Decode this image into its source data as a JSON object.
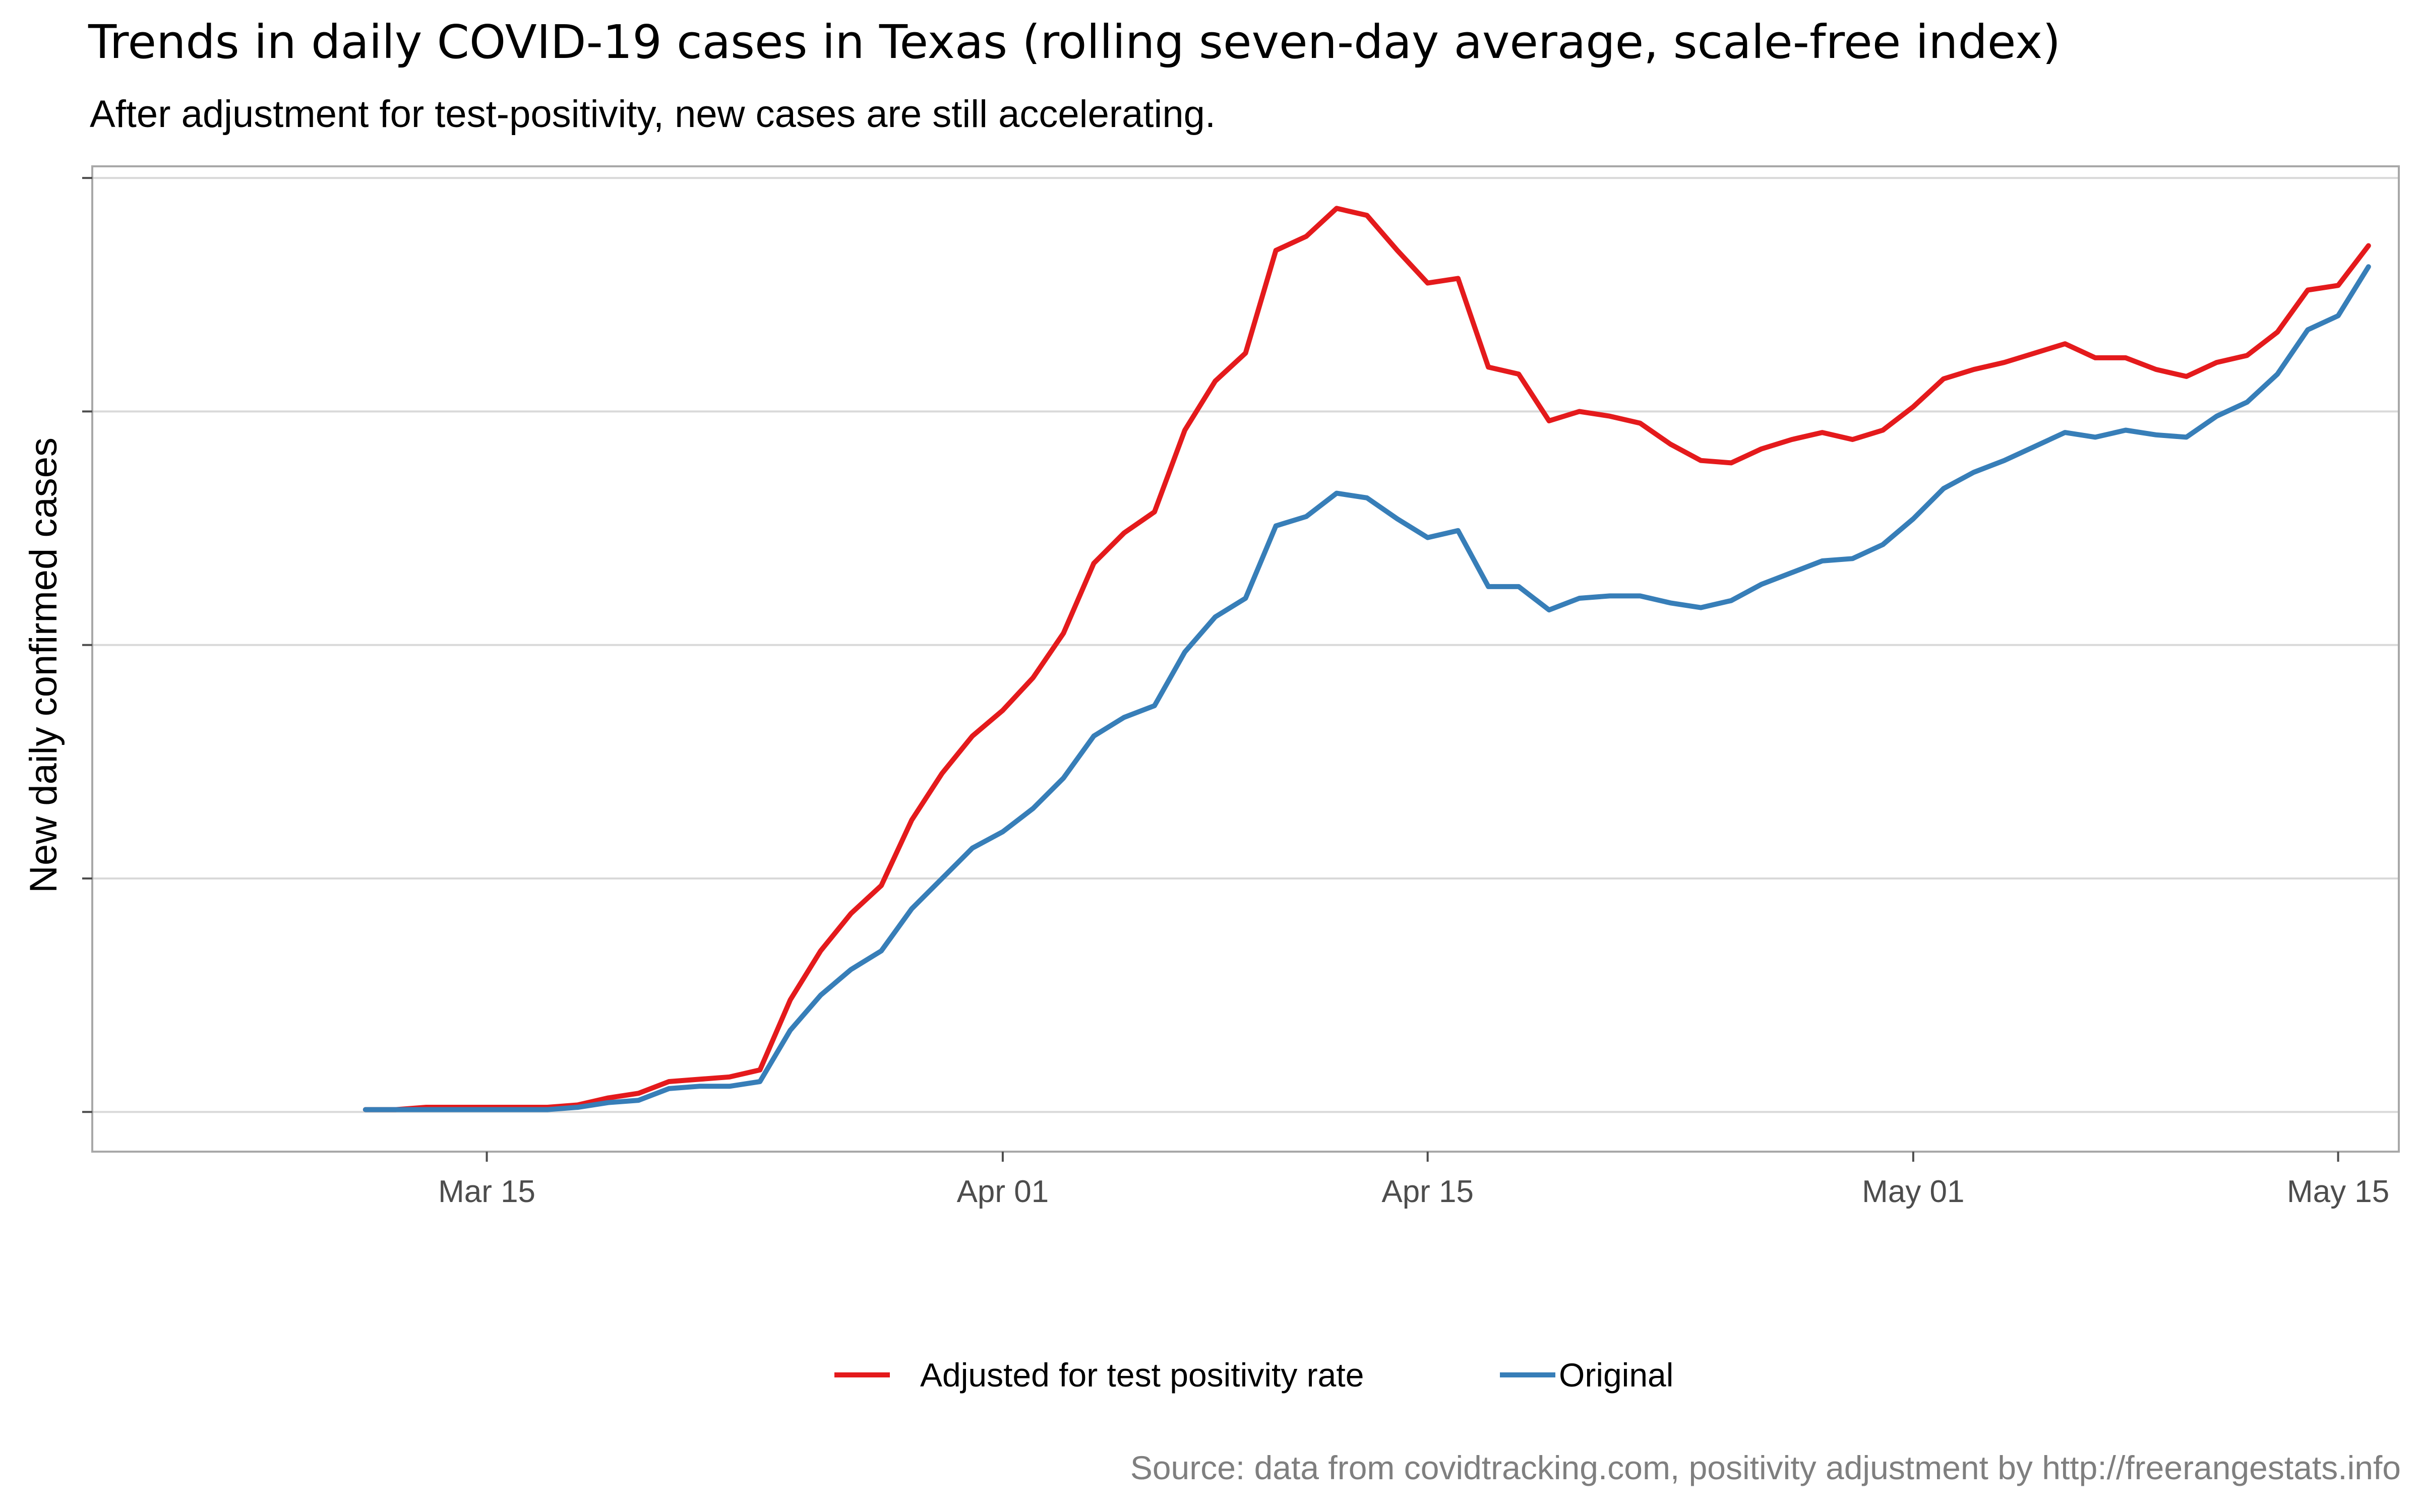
{
  "chart_data": {
    "type": "line",
    "title": "Trends in daily COVID-19 cases in Texas (rolling seven-day average, scale-free index)",
    "subtitle": "After adjustment for test-positivity, new cases are still accelerating.",
    "ylabel": "New daily confirmed cases",
    "xlabel": "",
    "caption": "Source: data from covidtracking.com, positivity adjustment by http://freerangestats.info",
    "x_axis_type": "date",
    "x_ticks": [
      {
        "date": "2020-03-15",
        "label": "Mar 15"
      },
      {
        "date": "2020-04-01",
        "label": "Apr 01"
      },
      {
        "date": "2020-04-15",
        "label": "Apr 15"
      },
      {
        "date": "2020-05-01",
        "label": "May 01"
      },
      {
        "date": "2020-05-15",
        "label": "May 15"
      }
    ],
    "xlim": [
      "2020-03-02",
      "2020-05-17"
    ],
    "y_ticks": [
      0,
      1,
      2,
      3,
      4
    ],
    "y_tick_labels_visible": false,
    "ylim": [
      -0.17,
      4.05
    ],
    "grid": true,
    "legend_position": "bottom",
    "x": [
      "2020-03-11",
      "2020-03-12",
      "2020-03-13",
      "2020-03-14",
      "2020-03-15",
      "2020-03-16",
      "2020-03-17",
      "2020-03-18",
      "2020-03-19",
      "2020-03-20",
      "2020-03-21",
      "2020-03-22",
      "2020-03-23",
      "2020-03-24",
      "2020-03-25",
      "2020-03-26",
      "2020-03-27",
      "2020-03-28",
      "2020-03-29",
      "2020-03-30",
      "2020-03-31",
      "2020-04-01",
      "2020-04-02",
      "2020-04-03",
      "2020-04-04",
      "2020-04-05",
      "2020-04-06",
      "2020-04-07",
      "2020-04-08",
      "2020-04-09",
      "2020-04-10",
      "2020-04-11",
      "2020-04-12",
      "2020-04-13",
      "2020-04-14",
      "2020-04-15",
      "2020-04-16",
      "2020-04-17",
      "2020-04-18",
      "2020-04-19",
      "2020-04-20",
      "2020-04-21",
      "2020-04-22",
      "2020-04-23",
      "2020-04-24",
      "2020-04-25",
      "2020-04-26",
      "2020-04-27",
      "2020-04-28",
      "2020-04-29",
      "2020-04-30",
      "2020-05-01",
      "2020-05-02",
      "2020-05-03",
      "2020-05-04",
      "2020-05-05",
      "2020-05-06",
      "2020-05-07",
      "2020-05-08",
      "2020-05-09",
      "2020-05-10",
      "2020-05-11",
      "2020-05-12",
      "2020-05-13",
      "2020-05-14",
      "2020-05-15",
      "2020-05-16"
    ],
    "series": [
      {
        "name": "Adjusted for test positivity rate",
        "color": "#e41a1c",
        "values": [
          0.01,
          0.01,
          0.02,
          0.02,
          0.02,
          0.02,
          0.02,
          0.03,
          0.06,
          0.08,
          0.13,
          0.14,
          0.15,
          0.18,
          0.48,
          0.69,
          0.85,
          0.97,
          1.25,
          1.45,
          1.61,
          1.72,
          1.86,
          2.05,
          2.35,
          2.48,
          2.57,
          2.92,
          3.13,
          3.25,
          3.69,
          3.75,
          3.87,
          3.84,
          3.69,
          3.55,
          3.57,
          3.19,
          3.16,
          2.96,
          3.0,
          2.98,
          2.95,
          2.86,
          2.79,
          2.78,
          2.84,
          2.88,
          2.91,
          2.88,
          2.92,
          3.02,
          3.14,
          3.18,
          3.21,
          3.25,
          3.29,
          3.23,
          3.23,
          3.18,
          3.15,
          3.21,
          3.24,
          3.34,
          3.52,
          3.54,
          3.71
        ]
      },
      {
        "name": "Original",
        "color": "#377eb8",
        "values": [
          0.01,
          0.01,
          0.01,
          0.01,
          0.01,
          0.01,
          0.01,
          0.02,
          0.04,
          0.05,
          0.1,
          0.11,
          0.11,
          0.13,
          0.35,
          0.5,
          0.61,
          0.69,
          0.87,
          1.0,
          1.13,
          1.2,
          1.3,
          1.43,
          1.61,
          1.69,
          1.74,
          1.97,
          2.12,
          2.2,
          2.51,
          2.55,
          2.65,
          2.63,
          2.54,
          2.46,
          2.49,
          2.25,
          2.25,
          2.15,
          2.2,
          2.21,
          2.21,
          2.18,
          2.16,
          2.19,
          2.26,
          2.31,
          2.36,
          2.37,
          2.43,
          2.54,
          2.67,
          2.74,
          2.79,
          2.85,
          2.91,
          2.89,
          2.92,
          2.9,
          2.89,
          2.98,
          3.04,
          3.16,
          3.35,
          3.41,
          3.62
        ]
      }
    ]
  }
}
